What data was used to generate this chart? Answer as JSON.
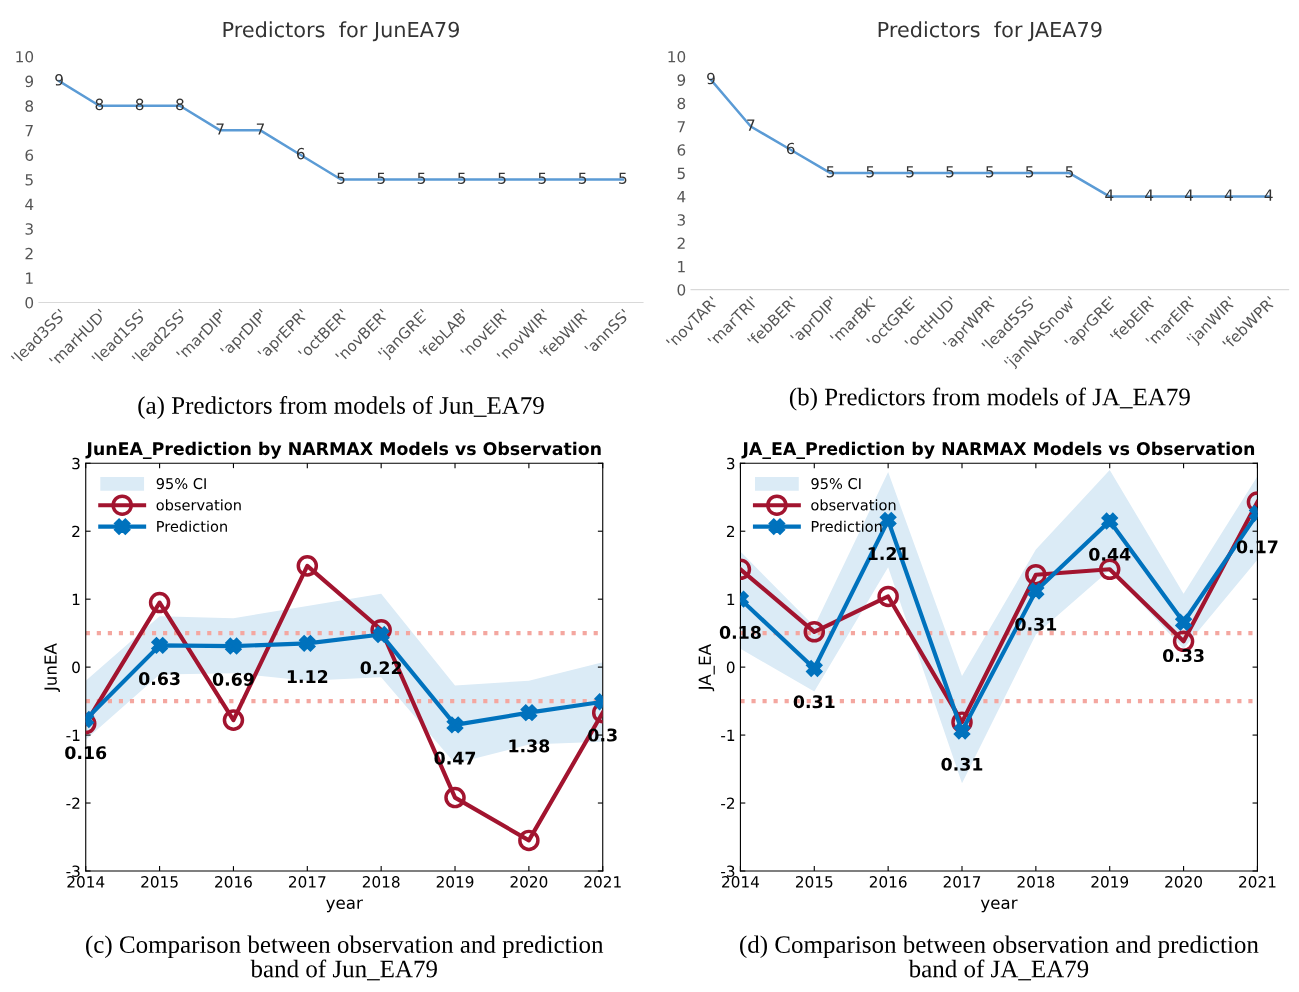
{
  "chart_data": [
    {
      "type": "line",
      "title": "Predictors  for JunEA79",
      "categories": [
        "'lead3SS'",
        "'marHUD'",
        "'lead1SS'",
        "'lead2SS'",
        "'marDIP'",
        "'aprDIP'",
        "'aprEPR'",
        "'octBER'",
        "'novBER'",
        "'janGRE'",
        "'febLAB'",
        "'novEIR'",
        "'novWIR'",
        "'febWIR'",
        "'annSS'"
      ],
      "series": [
        {
          "color": "#5b9bd5",
          "marker": "none",
          "values": [
            9,
            8,
            8,
            8,
            7,
            7,
            6,
            5,
            5,
            5,
            5,
            5,
            5,
            5,
            5
          ]
        }
      ],
      "ylim": [
        0,
        10
      ],
      "yticks": [
        0,
        1,
        2,
        3,
        4,
        5,
        6,
        7,
        8,
        9,
        10
      ],
      "data_labels": true,
      "grid": false,
      "legend": false,
      "annotations": [
        "(a) Predictors from models of Jun_EA79"
      ]
    },
    {
      "type": "line",
      "title": "Predictors  for JAEA79",
      "categories": [
        "'novTAR'",
        "'marTRI'",
        "'febBER'",
        "'aprDIP'",
        "'marBK'",
        "'octGRE'",
        "'octHUD'",
        "'aprWPR'",
        "'lead5SS'",
        "'janNASnow'",
        "'aprGRE'",
        "'febEIR'",
        "'marEIR'",
        "'janWIR'",
        "'febWPR'"
      ],
      "series": [
        {
          "color": "#5b9bd5",
          "marker": "none",
          "values": [
            9,
            7,
            6,
            5,
            5,
            5,
            5,
            5,
            5,
            5,
            4,
            4,
            4,
            4,
            4
          ]
        }
      ],
      "ylim": [
        0,
        10
      ],
      "yticks": [
        0,
        1,
        2,
        3,
        4,
        5,
        6,
        7,
        8,
        9,
        10
      ],
      "data_labels": true,
      "grid": false,
      "legend": false,
      "annotations": [
        "(b) Predictors from models of JA_EA79"
      ]
    },
    {
      "type": "line",
      "title": "JunEA_Prediction by NARMAX Models vs Observation",
      "xlabel": "year",
      "ylabel": "JunEA",
      "x": [
        2014,
        2015,
        2016,
        2017,
        2018,
        2019,
        2020,
        2021
      ],
      "series": [
        {
          "name": "observation",
          "type": "line",
          "color": "#a2142f",
          "marker": "circle",
          "values": [
            -0.83,
            0.95,
            -0.78,
            1.49,
            0.55,
            -1.92,
            -2.55,
            -0.67
          ]
        },
        {
          "name": "Prediction",
          "type": "line",
          "color": "#0072bd",
          "marker": "cross",
          "values": [
            -0.77,
            0.32,
            0.31,
            0.35,
            0.48,
            -0.85,
            -0.67,
            -0.51
          ],
          "lower": [
            -1.07,
            -0.11,
            -0.09,
            -0.2,
            -0.15,
            -1.42,
            -1.14,
            -1.1
          ],
          "upper": [
            -0.2,
            0.75,
            0.72,
            0.9,
            1.08,
            -0.27,
            -0.2,
            0.07
          ]
        }
      ],
      "xlim": [
        2014,
        2021
      ],
      "xticks": [
        2014,
        2015,
        2016,
        2017,
        2018,
        2019,
        2020,
        2021
      ],
      "ylim": [
        -3,
        3
      ],
      "yticks": [
        -3,
        -2,
        -1,
        0,
        1,
        2,
        3
      ],
      "ref_lines": [
        {
          "axis": "y",
          "value": 0.5,
          "color": "#f4a7a0",
          "line_style": "dotted"
        },
        {
          "axis": "y",
          "value": -0.5,
          "color": "#f4a7a0",
          "line_style": "dotted"
        }
      ],
      "grid": false,
      "legend": "top left",
      "annotations": [
        {
          "text": "0.16",
          "x": 2014,
          "y": -0.77
        },
        {
          "text": "0.63",
          "x": 2015,
          "y": 0.32
        },
        {
          "text": "0.69",
          "x": 2016,
          "y": 0.31
        },
        {
          "text": "1.12",
          "x": 2017,
          "y": 0.35
        },
        {
          "text": "0.22",
          "x": 2018,
          "y": 0.48
        },
        {
          "text": "0.47",
          "x": 2019,
          "y": -0.85
        },
        {
          "text": "1.38",
          "x": 2020,
          "y": -0.67
        },
        {
          "text": "0.3",
          "x": 2021,
          "y": -0.51
        },
        "95% CI",
        "(c) Comparison between observation and prediction\nband of Jun_EA79"
      ]
    },
    {
      "type": "line",
      "title": "JA_EA_Prediction by NARMAX Models vs Observation",
      "xlabel": "year",
      "ylabel": "JA_EA",
      "x": [
        2014,
        2015,
        2016,
        2017,
        2018,
        2019,
        2020,
        2021
      ],
      "series": [
        {
          "name": "observation",
          "type": "line",
          "color": "#a2142f",
          "marker": "circle",
          "values": [
            1.44,
            0.52,
            1.04,
            -0.81,
            1.36,
            1.44,
            0.38,
            2.43
          ]
        },
        {
          "name": "Prediction",
          "type": "line",
          "color": "#0072bd",
          "marker": "cross",
          "values": [
            1.0,
            -0.02,
            2.16,
            -0.94,
            1.12,
            2.15,
            0.66,
            2.26
          ],
          "lower": [
            0.27,
            -0.36,
            1.47,
            -1.71,
            0.48,
            1.43,
            0.27,
            1.58
          ],
          "upper": [
            1.7,
            0.6,
            2.87,
            -0.13,
            1.73,
            2.9,
            1.08,
            2.81
          ]
        }
      ],
      "xlim": [
        2014,
        2021
      ],
      "xticks": [
        2014,
        2015,
        2016,
        2017,
        2018,
        2019,
        2020,
        2021
      ],
      "ylim": [
        -3,
        3
      ],
      "yticks": [
        -3,
        -2,
        -1,
        0,
        1,
        2,
        3
      ],
      "ref_lines": [
        {
          "axis": "y",
          "value": 0.5,
          "color": "#f4a7a0",
          "line_style": "dotted"
        },
        {
          "axis": "y",
          "value": -0.5,
          "color": "#f4a7a0",
          "line_style": "dotted"
        }
      ],
      "grid": false,
      "legend": "top left",
      "annotations": [
        {
          "text": "0.18",
          "x": 2014,
          "y": 1.0
        },
        {
          "text": "0.31",
          "x": 2015,
          "y": -0.02
        },
        {
          "text": "1.21",
          "x": 2016,
          "y": 2.16
        },
        {
          "text": "0.31",
          "x": 2017,
          "y": -0.94
        },
        {
          "text": "0.31",
          "x": 2018,
          "y": 1.12
        },
        {
          "text": "0.44",
          "x": 2019,
          "y": 2.15
        },
        {
          "text": "0.33",
          "x": 2020,
          "y": 0.66
        },
        {
          "text": "0.17",
          "x": 2021,
          "y": 2.26
        },
        "95% CI",
        "(d) Comparison between observation and prediction\nband of JA_EA79"
      ]
    }
  ]
}
